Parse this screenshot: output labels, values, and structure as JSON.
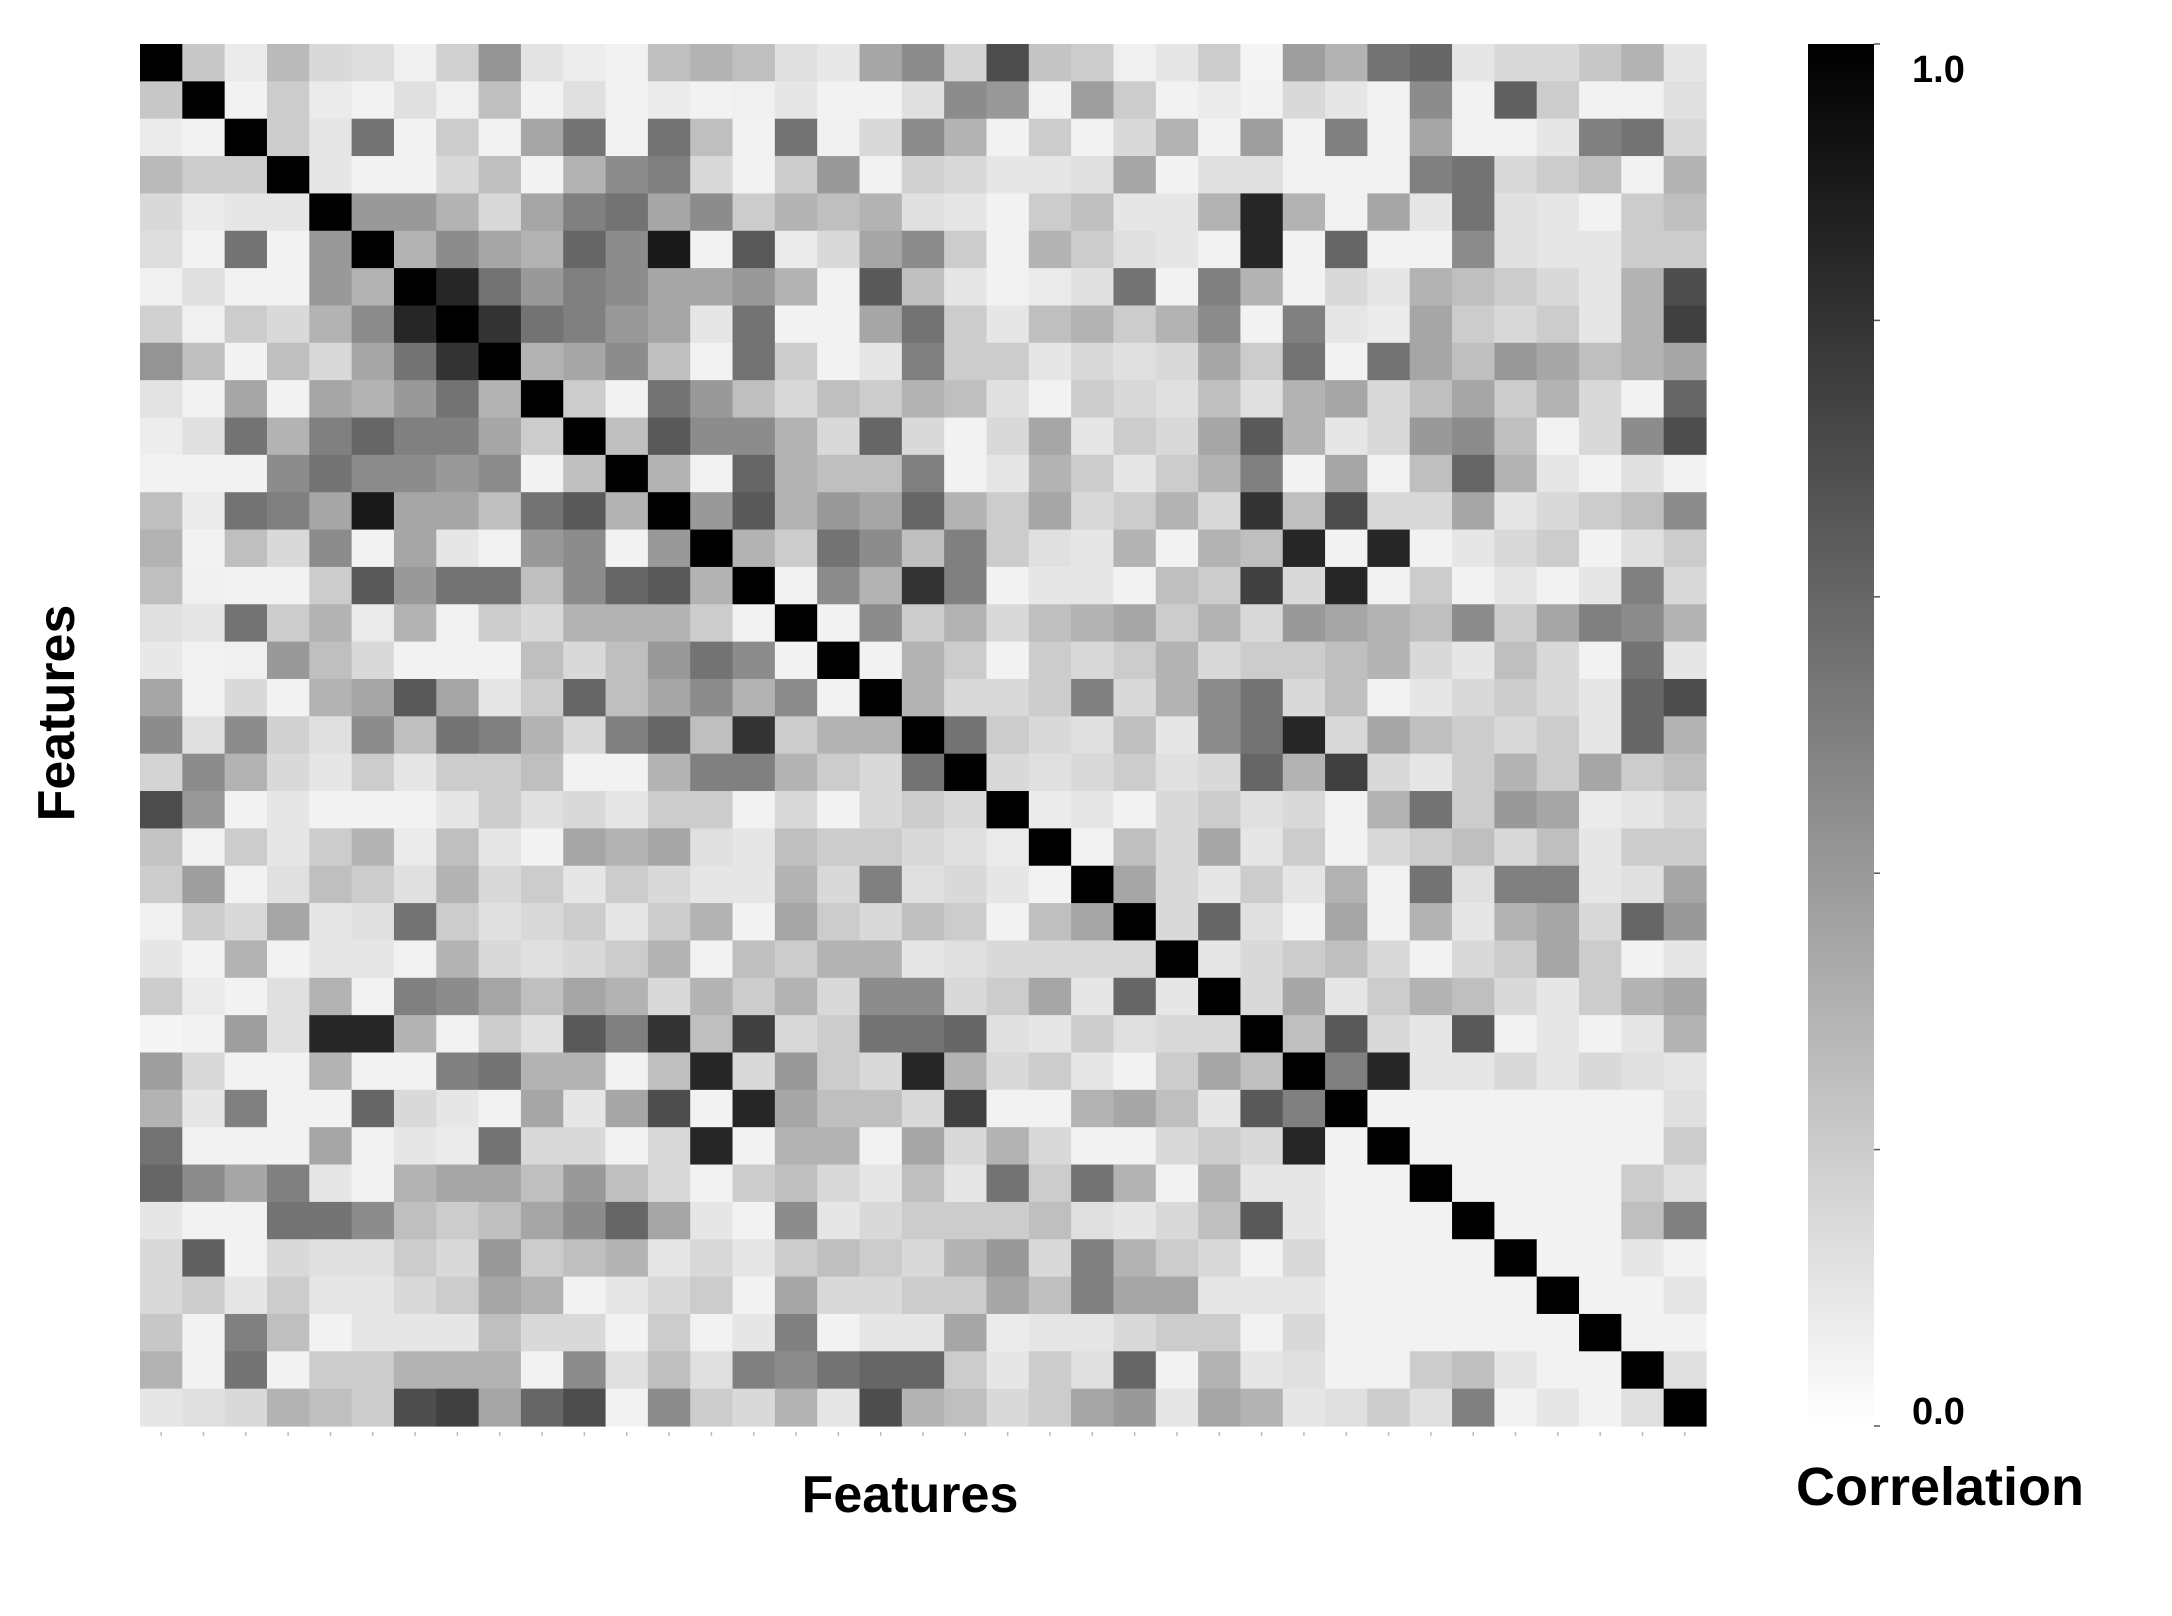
{
  "chart_data": {
    "type": "heatmap",
    "title": "",
    "xlabel": "Features",
    "ylabel": "Features",
    "colorbar": {
      "label": "Correlation",
      "min_label": "0.0",
      "max_label": "1.0",
      "range": [
        0.0,
        1.0
      ],
      "low_color": "#ffffff",
      "high_color": "#000000"
    },
    "n_features": 37,
    "values": [
      [
        1,
        0.22,
        0.08,
        0.27,
        0.15,
        0.13,
        0.06,
        0.18,
        0.42,
        0.11,
        0.07,
        0.05,
        0.25,
        0.3,
        0.25,
        0.12,
        0.09,
        0.35,
        0.45,
        0.17,
        0.7,
        0.23,
        0.2,
        0.06,
        0.1,
        0.2,
        0.04,
        0.38,
        0.3,
        0.55,
        0.6,
        0.1,
        0.15,
        0.15,
        0.22,
        0.3,
        0.1
      ],
      [
        0.22,
        1,
        0.05,
        0.2,
        0.08,
        0.05,
        0.12,
        0.06,
        0.25,
        0.05,
        0.12,
        0.05,
        0.08,
        0.05,
        0.06,
        0.1,
        0.05,
        0.05,
        0.12,
        0.45,
        0.4,
        0.05,
        0.38,
        0.2,
        0.05,
        0.08,
        0.05,
        0.15,
        0.1,
        0.05,
        0.45,
        0.05,
        0.62,
        0.2,
        0.05,
        0.05,
        0.12
      ],
      [
        0.08,
        0.05,
        1,
        0.2,
        0.1,
        0.55,
        0.05,
        0.2,
        0.05,
        0.35,
        0.55,
        0.05,
        0.55,
        0.25,
        0.05,
        0.55,
        0.06,
        0.15,
        0.45,
        0.3,
        0.05,
        0.2,
        0.05,
        0.15,
        0.3,
        0.05,
        0.38,
        0.05,
        0.5,
        0.05,
        0.35,
        0.05,
        0.05,
        0.1,
        0.5,
        0.55,
        0.15
      ],
      [
        0.27,
        0.2,
        0.2,
        1,
        0.1,
        0.05,
        0.05,
        0.15,
        0.25,
        0.05,
        0.3,
        0.45,
        0.5,
        0.15,
        0.05,
        0.2,
        0.4,
        0.05,
        0.18,
        0.15,
        0.1,
        0.1,
        0.12,
        0.35,
        0.05,
        0.12,
        0.12,
        0.05,
        0.05,
        0.05,
        0.5,
        0.55,
        0.15,
        0.2,
        0.25,
        0.05,
        0.3
      ],
      [
        0.15,
        0.08,
        0.1,
        0.1,
        1,
        0.4,
        0.4,
        0.3,
        0.15,
        0.35,
        0.5,
        0.55,
        0.35,
        0.45,
        0.2,
        0.3,
        0.25,
        0.3,
        0.12,
        0.1,
        0.05,
        0.2,
        0.25,
        0.1,
        0.1,
        0.3,
        0.85,
        0.3,
        0.05,
        0.35,
        0.1,
        0.55,
        0.12,
        0.1,
        0.05,
        0.2,
        0.25
      ],
      [
        0.13,
        0.05,
        0.55,
        0.05,
        0.4,
        1,
        0.3,
        0.45,
        0.35,
        0.3,
        0.6,
        0.45,
        0.9,
        0.05,
        0.65,
        0.08,
        0.15,
        0.35,
        0.45,
        0.2,
        0.05,
        0.3,
        0.2,
        0.12,
        0.1,
        0.05,
        0.85,
        0.05,
        0.6,
        0.05,
        0.05,
        0.45,
        0.12,
        0.1,
        0.1,
        0.2,
        0.2
      ],
      [
        0.06,
        0.12,
        0.05,
        0.05,
        0.4,
        0.3,
        1,
        0.85,
        0.55,
        0.4,
        0.5,
        0.45,
        0.35,
        0.35,
        0.4,
        0.3,
        0.05,
        0.65,
        0.25,
        0.1,
        0.05,
        0.08,
        0.12,
        0.55,
        0.05,
        0.5,
        0.3,
        0.05,
        0.15,
        0.1,
        0.3,
        0.25,
        0.2,
        0.15,
        0.1,
        0.3,
        0.7
      ],
      [
        0.18,
        0.06,
        0.2,
        0.15,
        0.3,
        0.45,
        0.85,
        1,
        0.8,
        0.55,
        0.5,
        0.4,
        0.35,
        0.1,
        0.55,
        0.05,
        0.05,
        0.35,
        0.55,
        0.2,
        0.1,
        0.25,
        0.3,
        0.2,
        0.3,
        0.45,
        0.05,
        0.5,
        0.1,
        0.08,
        0.35,
        0.2,
        0.15,
        0.2,
        0.1,
        0.3,
        0.75
      ],
      [
        0.42,
        0.25,
        0.05,
        0.25,
        0.15,
        0.35,
        0.55,
        0.8,
        1,
        0.3,
        0.35,
        0.45,
        0.25,
        0.05,
        0.55,
        0.2,
        0.05,
        0.1,
        0.5,
        0.2,
        0.2,
        0.1,
        0.15,
        0.12,
        0.15,
        0.35,
        0.2,
        0.55,
        0.05,
        0.55,
        0.35,
        0.25,
        0.4,
        0.35,
        0.25,
        0.3,
        0.35
      ],
      [
        0.11,
        0.05,
        0.35,
        0.05,
        0.35,
        0.3,
        0.4,
        0.55,
        0.3,
        1,
        0.2,
        0.05,
        0.55,
        0.4,
        0.25,
        0.15,
        0.25,
        0.2,
        0.3,
        0.25,
        0.12,
        0.05,
        0.2,
        0.15,
        0.12,
        0.25,
        0.12,
        0.3,
        0.35,
        0.15,
        0.25,
        0.35,
        0.2,
        0.3,
        0.15,
        0.05,
        0.6
      ],
      [
        0.07,
        0.12,
        0.55,
        0.3,
        0.5,
        0.6,
        0.5,
        0.5,
        0.35,
        0.2,
        1,
        0.25,
        0.65,
        0.45,
        0.45,
        0.3,
        0.15,
        0.6,
        0.15,
        0.05,
        0.15,
        0.35,
        0.1,
        0.2,
        0.15,
        0.35,
        0.65,
        0.3,
        0.1,
        0.15,
        0.4,
        0.45,
        0.25,
        0.05,
        0.15,
        0.45,
        0.7
      ],
      [
        0.05,
        0.05,
        0.05,
        0.45,
        0.55,
        0.45,
        0.45,
        0.4,
        0.45,
        0.05,
        0.25,
        1,
        0.3,
        0.05,
        0.6,
        0.3,
        0.25,
        0.25,
        0.5,
        0.05,
        0.1,
        0.3,
        0.2,
        0.1,
        0.2,
        0.3,
        0.5,
        0.05,
        0.35,
        0.05,
        0.25,
        0.6,
        0.3,
        0.1,
        0.05,
        0.12,
        0.05
      ],
      [
        0.25,
        0.08,
        0.55,
        0.5,
        0.35,
        0.9,
        0.35,
        0.35,
        0.25,
        0.55,
        0.65,
        0.3,
        1,
        0.4,
        0.65,
        0.3,
        0.4,
        0.35,
        0.6,
        0.3,
        0.2,
        0.35,
        0.15,
        0.2,
        0.3,
        0.15,
        0.8,
        0.25,
        0.7,
        0.15,
        0.15,
        0.35,
        0.1,
        0.15,
        0.2,
        0.25,
        0.45
      ],
      [
        0.3,
        0.05,
        0.25,
        0.15,
        0.45,
        0.05,
        0.35,
        0.1,
        0.05,
        0.4,
        0.45,
        0.05,
        0.4,
        1,
        0.3,
        0.2,
        0.55,
        0.45,
        0.25,
        0.5,
        0.2,
        0.12,
        0.1,
        0.3,
        0.05,
        0.3,
        0.25,
        0.85,
        0.05,
        0.85,
        0.05,
        0.1,
        0.15,
        0.2,
        0.05,
        0.12,
        0.2
      ],
      [
        0.25,
        0.06,
        0.05,
        0.05,
        0.2,
        0.65,
        0.4,
        0.55,
        0.55,
        0.25,
        0.45,
        0.6,
        0.65,
        0.3,
        1,
        0.05,
        0.45,
        0.3,
        0.8,
        0.5,
        0.05,
        0.1,
        0.1,
        0.05,
        0.25,
        0.2,
        0.75,
        0.15,
        0.85,
        0.05,
        0.2,
        0.05,
        0.1,
        0.05,
        0.1,
        0.5,
        0.15
      ],
      [
        0.12,
        0.1,
        0.55,
        0.2,
        0.3,
        0.08,
        0.3,
        0.05,
        0.2,
        0.15,
        0.3,
        0.3,
        0.3,
        0.2,
        0.05,
        1,
        0.05,
        0.45,
        0.2,
        0.3,
        0.15,
        0.25,
        0.3,
        0.35,
        0.2,
        0.3,
        0.15,
        0.4,
        0.35,
        0.3,
        0.25,
        0.45,
        0.2,
        0.35,
        0.5,
        0.45,
        0.3
      ],
      [
        0.09,
        0.05,
        0.06,
        0.4,
        0.25,
        0.15,
        0.05,
        0.05,
        0.05,
        0.25,
        0.15,
        0.25,
        0.4,
        0.55,
        0.45,
        0.05,
        1,
        0.05,
        0.3,
        0.2,
        0.05,
        0.2,
        0.15,
        0.2,
        0.3,
        0.15,
        0.2,
        0.2,
        0.25,
        0.3,
        0.15,
        0.1,
        0.25,
        0.15,
        0.05,
        0.55,
        0.1
      ],
      [
        0.35,
        0.05,
        0.15,
        0.05,
        0.3,
        0.35,
        0.65,
        0.35,
        0.1,
        0.2,
        0.6,
        0.25,
        0.35,
        0.45,
        0.3,
        0.45,
        0.05,
        1,
        0.3,
        0.15,
        0.15,
        0.2,
        0.5,
        0.15,
        0.3,
        0.45,
        0.55,
        0.15,
        0.25,
        0.05,
        0.1,
        0.15,
        0.2,
        0.15,
        0.1,
        0.6,
        0.7
      ],
      [
        0.45,
        0.12,
        0.45,
        0.18,
        0.12,
        0.45,
        0.25,
        0.55,
        0.5,
        0.3,
        0.15,
        0.5,
        0.6,
        0.25,
        0.8,
        0.2,
        0.3,
        0.3,
        1,
        0.55,
        0.2,
        0.15,
        0.12,
        0.25,
        0.1,
        0.45,
        0.55,
        0.85,
        0.15,
        0.35,
        0.25,
        0.2,
        0.15,
        0.2,
        0.1,
        0.6,
        0.3
      ],
      [
        0.17,
        0.45,
        0.3,
        0.15,
        0.1,
        0.2,
        0.1,
        0.2,
        0.2,
        0.25,
        0.05,
        0.05,
        0.3,
        0.5,
        0.5,
        0.3,
        0.2,
        0.15,
        0.55,
        1,
        0.15,
        0.12,
        0.15,
        0.2,
        0.12,
        0.15,
        0.6,
        0.3,
        0.75,
        0.15,
        0.1,
        0.2,
        0.3,
        0.2,
        0.35,
        0.2,
        0.25
      ],
      [
        0.7,
        0.4,
        0.05,
        0.1,
        0.05,
        0.05,
        0.05,
        0.1,
        0.2,
        0.12,
        0.15,
        0.1,
        0.2,
        0.2,
        0.05,
        0.15,
        0.05,
        0.15,
        0.2,
        0.15,
        1,
        0.08,
        0.1,
        0.05,
        0.15,
        0.2,
        0.12,
        0.15,
        0.05,
        0.3,
        0.55,
        0.2,
        0.4,
        0.35,
        0.08,
        0.1,
        0.15
      ],
      [
        0.23,
        0.05,
        0.2,
        0.1,
        0.2,
        0.3,
        0.08,
        0.25,
        0.1,
        0.05,
        0.35,
        0.3,
        0.35,
        0.12,
        0.1,
        0.25,
        0.2,
        0.2,
        0.15,
        0.12,
        0.08,
        1,
        0.05,
        0.25,
        0.15,
        0.35,
        0.1,
        0.2,
        0.05,
        0.15,
        0.2,
        0.25,
        0.15,
        0.25,
        0.1,
        0.2,
        0.2
      ],
      [
        0.2,
        0.38,
        0.05,
        0.12,
        0.25,
        0.2,
        0.12,
        0.3,
        0.15,
        0.2,
        0.1,
        0.2,
        0.15,
        0.1,
        0.1,
        0.3,
        0.15,
        0.5,
        0.12,
        0.15,
        0.1,
        0.05,
        1,
        0.35,
        0.15,
        0.1,
        0.2,
        0.1,
        0.3,
        0.05,
        0.55,
        0.12,
        0.5,
        0.5,
        0.1,
        0.12,
        0.35
      ],
      [
        0.06,
        0.2,
        0.15,
        0.35,
        0.1,
        0.12,
        0.55,
        0.2,
        0.12,
        0.15,
        0.2,
        0.1,
        0.2,
        0.3,
        0.05,
        0.35,
        0.2,
        0.15,
        0.25,
        0.2,
        0.05,
        0.25,
        0.35,
        1,
        0.15,
        0.6,
        0.12,
        0.05,
        0.35,
        0.05,
        0.3,
        0.1,
        0.3,
        0.35,
        0.15,
        0.6,
        0.4
      ],
      [
        0.1,
        0.05,
        0.3,
        0.05,
        0.1,
        0.1,
        0.05,
        0.3,
        0.15,
        0.12,
        0.15,
        0.2,
        0.3,
        0.05,
        0.25,
        0.2,
        0.3,
        0.3,
        0.1,
        0.12,
        0.15,
        0.15,
        0.15,
        0.15,
        1,
        0.1,
        0.15,
        0.2,
        0.25,
        0.15,
        0.05,
        0.15,
        0.2,
        0.35,
        0.2,
        0.05,
        0.1
      ],
      [
        0.2,
        0.08,
        0.05,
        0.12,
        0.3,
        0.05,
        0.5,
        0.45,
        0.35,
        0.25,
        0.35,
        0.3,
        0.15,
        0.3,
        0.2,
        0.3,
        0.15,
        0.45,
        0.45,
        0.15,
        0.2,
        0.35,
        0.1,
        0.6,
        0.1,
        1,
        0.15,
        0.35,
        0.1,
        0.2,
        0.3,
        0.25,
        0.15,
        0.1,
        0.2,
        0.3,
        0.35
      ],
      [
        0.04,
        0.05,
        0.38,
        0.12,
        0.85,
        0.85,
        0.3,
        0.05,
        0.2,
        0.12,
        0.65,
        0.5,
        0.8,
        0.25,
        0.75,
        0.15,
        0.2,
        0.55,
        0.55,
        0.6,
        0.12,
        0.1,
        0.2,
        0.12,
        0.15,
        0.15,
        1,
        0.25,
        0.65,
        0.15,
        0.1,
        0.65,
        0.05,
        0.1,
        0.05,
        0.1,
        0.3
      ],
      [
        0.38,
        0.15,
        0.05,
        0.05,
        0.3,
        0.05,
        0.05,
        0.5,
        0.55,
        0.3,
        0.3,
        0.05,
        0.25,
        0.85,
        0.15,
        0.4,
        0.2,
        0.15,
        0.85,
        0.3,
        0.15,
        0.2,
        0.1,
        0.05,
        0.2,
        0.35,
        0.25,
        1,
        0.5,
        0.85,
        0.1,
        0.1,
        0.15,
        0.1,
        0.15,
        0.12,
        0.1
      ],
      [
        0.3,
        0.1,
        0.5,
        0.05,
        0.05,
        0.6,
        0.15,
        0.1,
        0.05,
        0.35,
        0.1,
        0.35,
        0.7,
        0.05,
        0.85,
        0.35,
        0.25,
        0.25,
        0.15,
        0.75,
        0.05,
        0.05,
        0.3,
        0.35,
        0.25,
        0.1,
        0.65,
        0.5,
        1,
        0.05,
        0.05,
        0.05,
        0.05,
        0.05,
        0.05,
        0.05,
        0.12
      ],
      [
        0.55,
        0.05,
        0.05,
        0.05,
        0.35,
        0.05,
        0.1,
        0.08,
        0.55,
        0.15,
        0.15,
        0.05,
        0.15,
        0.85,
        0.05,
        0.3,
        0.3,
        0.05,
        0.35,
        0.15,
        0.3,
        0.15,
        0.05,
        0.05,
        0.15,
        0.2,
        0.15,
        0.85,
        0.05,
        1,
        0.05,
        0.05,
        0.05,
        0.05,
        0.05,
        0.05,
        0.2
      ],
      [
        0.6,
        0.45,
        0.35,
        0.5,
        0.1,
        0.05,
        0.3,
        0.35,
        0.35,
        0.25,
        0.4,
        0.25,
        0.15,
        0.05,
        0.2,
        0.25,
        0.15,
        0.1,
        0.25,
        0.1,
        0.55,
        0.2,
        0.55,
        0.3,
        0.05,
        0.3,
        0.1,
        0.1,
        0.05,
        0.05,
        1,
        0.05,
        0.05,
        0.05,
        0.05,
        0.2,
        0.12
      ],
      [
        0.1,
        0.05,
        0.05,
        0.55,
        0.55,
        0.45,
        0.25,
        0.2,
        0.25,
        0.35,
        0.45,
        0.6,
        0.35,
        0.1,
        0.05,
        0.45,
        0.1,
        0.15,
        0.2,
        0.2,
        0.2,
        0.25,
        0.12,
        0.1,
        0.15,
        0.25,
        0.65,
        0.1,
        0.05,
        0.05,
        0.05,
        1,
        0.05,
        0.05,
        0.05,
        0.25,
        0.5
      ],
      [
        0.15,
        0.62,
        0.05,
        0.15,
        0.12,
        0.12,
        0.2,
        0.15,
        0.4,
        0.2,
        0.25,
        0.3,
        0.1,
        0.15,
        0.1,
        0.2,
        0.25,
        0.2,
        0.15,
        0.3,
        0.4,
        0.15,
        0.5,
        0.3,
        0.2,
        0.15,
        0.05,
        0.15,
        0.05,
        0.05,
        0.05,
        0.05,
        1,
        0.05,
        0.05,
        0.1,
        0.05
      ],
      [
        0.15,
        0.2,
        0.1,
        0.2,
        0.1,
        0.1,
        0.15,
        0.2,
        0.35,
        0.3,
        0.05,
        0.1,
        0.15,
        0.2,
        0.05,
        0.35,
        0.15,
        0.15,
        0.2,
        0.2,
        0.35,
        0.25,
        0.5,
        0.35,
        0.35,
        0.1,
        0.1,
        0.1,
        0.05,
        0.05,
        0.05,
        0.05,
        0.05,
        1,
        0.05,
        0.05,
        0.1
      ],
      [
        0.22,
        0.05,
        0.5,
        0.25,
        0.05,
        0.1,
        0.1,
        0.1,
        0.25,
        0.15,
        0.15,
        0.05,
        0.2,
        0.05,
        0.1,
        0.5,
        0.05,
        0.1,
        0.1,
        0.35,
        0.08,
        0.1,
        0.1,
        0.15,
        0.2,
        0.2,
        0.05,
        0.15,
        0.05,
        0.05,
        0.05,
        0.05,
        0.05,
        0.05,
        1,
        0.05,
        0.05
      ],
      [
        0.3,
        0.05,
        0.55,
        0.05,
        0.2,
        0.2,
        0.3,
        0.3,
        0.3,
        0.05,
        0.45,
        0.12,
        0.25,
        0.12,
        0.5,
        0.45,
        0.55,
        0.6,
        0.6,
        0.2,
        0.1,
        0.2,
        0.12,
        0.6,
        0.05,
        0.3,
        0.1,
        0.12,
        0.05,
        0.05,
        0.2,
        0.25,
        0.1,
        0.05,
        0.05,
        1,
        0.12
      ],
      [
        0.1,
        0.12,
        0.15,
        0.3,
        0.25,
        0.2,
        0.7,
        0.75,
        0.35,
        0.6,
        0.7,
        0.05,
        0.45,
        0.2,
        0.15,
        0.3,
        0.1,
        0.7,
        0.3,
        0.25,
        0.15,
        0.2,
        0.35,
        0.4,
        0.1,
        0.35,
        0.3,
        0.1,
        0.12,
        0.2,
        0.12,
        0.5,
        0.05,
        0.1,
        0.05,
        0.12,
        1
      ]
    ]
  }
}
